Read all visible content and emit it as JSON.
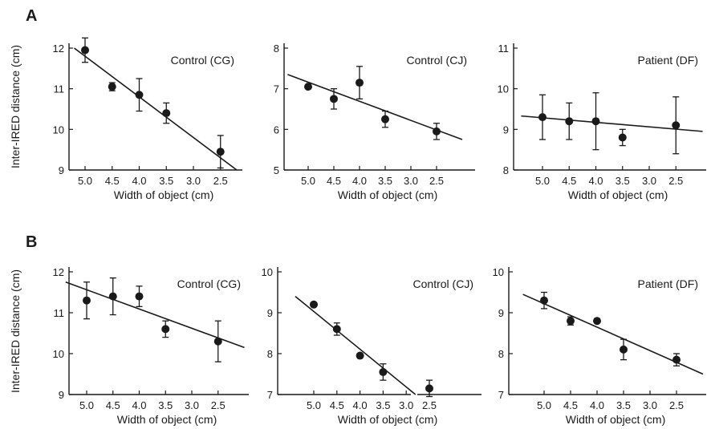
{
  "figure": {
    "row_labels": [
      "A",
      "B"
    ],
    "ylabel": "Inter-IRED distance (cm)"
  },
  "chart_data": [
    {
      "type": "scatter",
      "title": "Control (CG)",
      "xlabel": "Width of object (cm)",
      "ylabel": "Inter-IRED distance (cm)",
      "x_reversed": true,
      "xticks": [
        5.0,
        4.5,
        4.0,
        3.5,
        3.0,
        2.5
      ],
      "xtick_labels": [
        "5.0",
        "4.5",
        "4.0",
        "3.5",
        "3.0",
        "2.5"
      ],
      "yticks": [
        9,
        10,
        11,
        12
      ],
      "ytick_labels": [
        "9",
        "10",
        "11",
        "12"
      ],
      "ylim": [
        9,
        12
      ],
      "series": [
        {
          "x": [
            5.0,
            4.5,
            4.0,
            3.5,
            2.5
          ],
          "y": [
            11.95,
            11.05,
            10.85,
            10.4,
            9.45
          ],
          "err": [
            0.3,
            0.1,
            0.4,
            0.25,
            0.4
          ]
        }
      ],
      "fit": {
        "x": [
          5.2,
          2.2
        ],
        "y": [
          12.0,
          9.0
        ]
      }
    },
    {
      "type": "scatter",
      "title": "Control (CJ)",
      "xlabel": "Width of object (cm)",
      "ylabel": "",
      "x_reversed": true,
      "xticks": [
        5.0,
        4.5,
        4.0,
        3.5,
        3.0,
        2.5
      ],
      "xtick_labels": [
        "5.0",
        "4.5",
        "4.0",
        "3.5",
        "3.0",
        "2.5"
      ],
      "yticks": [
        5,
        6,
        7,
        8
      ],
      "ytick_labels": [
        "5",
        "6",
        "7",
        "8"
      ],
      "ylim": [
        5,
        8
      ],
      "series": [
        {
          "x": [
            5.0,
            4.5,
            4.0,
            3.5,
            2.5
          ],
          "y": [
            7.05,
            6.75,
            7.15,
            6.25,
            5.95
          ],
          "err": [
            0.05,
            0.25,
            0.4,
            0.2,
            0.2
          ]
        }
      ],
      "fit": {
        "x": [
          5.4,
          2.0
        ],
        "y": [
          7.35,
          5.75
        ]
      }
    },
    {
      "type": "scatter",
      "title": "Patient (DF)",
      "xlabel": "Width of object (cm)",
      "ylabel": "",
      "x_reversed": true,
      "xticks": [
        5.0,
        4.5,
        4.0,
        3.5,
        3.0,
        2.5
      ],
      "xtick_labels": [
        "5.0",
        "4.5",
        "4.0",
        "3.5",
        "3.0",
        "2.5"
      ],
      "yticks": [
        8,
        9,
        10,
        11
      ],
      "ytick_labels": [
        "8",
        "9",
        "10",
        "11"
      ],
      "ylim": [
        8,
        11
      ],
      "series": [
        {
          "x": [
            5.0,
            4.5,
            4.0,
            3.5,
            2.5
          ],
          "y": [
            9.3,
            9.2,
            9.2,
            8.8,
            9.1
          ],
          "err": [
            0.55,
            0.45,
            0.7,
            0.2,
            0.7
          ]
        }
      ],
      "fit": {
        "x": [
          5.4,
          2.0
        ],
        "y": [
          9.33,
          8.95
        ]
      }
    },
    {
      "type": "scatter",
      "title": "Control (CG)",
      "xlabel": "Width of object (cm)",
      "ylabel": "Inter-IRED distance (cm)",
      "x_reversed": true,
      "xticks": [
        5.0,
        4.5,
        4.0,
        3.5,
        3.0,
        2.5
      ],
      "xtick_labels": [
        "5.0",
        "4.5",
        "4.0",
        "3.5",
        "3.0",
        "2.5"
      ],
      "yticks": [
        9,
        10,
        11,
        12
      ],
      "ytick_labels": [
        "9",
        "10",
        "11",
        "12"
      ],
      "ylim": [
        9,
        12
      ],
      "series": [
        {
          "x": [
            5.0,
            4.5,
            4.0,
            3.5,
            2.5
          ],
          "y": [
            11.3,
            11.4,
            11.4,
            10.6,
            10.3
          ],
          "err": [
            0.45,
            0.45,
            0.25,
            0.2,
            0.5
          ]
        }
      ],
      "fit": {
        "x": [
          5.4,
          2.0
        ],
        "y": [
          11.75,
          10.15
        ]
      }
    },
    {
      "type": "scatter",
      "title": "Control (CJ)",
      "xlabel": "Width of object (cm)",
      "ylabel": "",
      "x_reversed": true,
      "xticks": [
        5.0,
        4.5,
        4.0,
        3.5,
        3.0,
        2.5
      ],
      "xtick_labels": [
        "5.0",
        "4.5",
        "4.0",
        "3.5",
        "3.0",
        "2.5"
      ],
      "yticks": [
        7,
        8,
        9,
        10
      ],
      "ytick_labels": [
        "7",
        "8",
        "9",
        "10"
      ],
      "ylim": [
        7,
        10
      ],
      "series": [
        {
          "x": [
            5.0,
            4.5,
            4.0,
            3.5,
            2.5
          ],
          "y": [
            9.2,
            8.6,
            7.95,
            7.55,
            7.15
          ],
          "err": [
            0.05,
            0.15,
            0.05,
            0.2,
            0.2
          ]
        }
      ],
      "fit": {
        "x": [
          5.4,
          2.8
        ],
        "y": [
          9.4,
          7.0
        ]
      }
    },
    {
      "type": "scatter",
      "title": "Patient (DF)",
      "xlabel": "Width of object (cm)",
      "ylabel": "",
      "x_reversed": true,
      "xticks": [
        5.0,
        4.5,
        4.0,
        3.5,
        3.0,
        2.5
      ],
      "xtick_labels": [
        "5.0",
        "4.5",
        "4.0",
        "3.5",
        "3.0",
        "2.5"
      ],
      "yticks": [
        7,
        8,
        9,
        10
      ],
      "ytick_labels": [
        "7",
        "8",
        "9",
        "10"
      ],
      "ylim": [
        7,
        10
      ],
      "series": [
        {
          "x": [
            5.0,
            4.5,
            4.0,
            3.5,
            2.5
          ],
          "y": [
            9.3,
            8.8,
            8.8,
            8.1,
            7.85
          ],
          "err": [
            0.2,
            0.1,
            0.05,
            0.25,
            0.15
          ]
        }
      ],
      "fit": {
        "x": [
          5.4,
          2.0
        ],
        "y": [
          9.45,
          7.5
        ]
      }
    }
  ]
}
